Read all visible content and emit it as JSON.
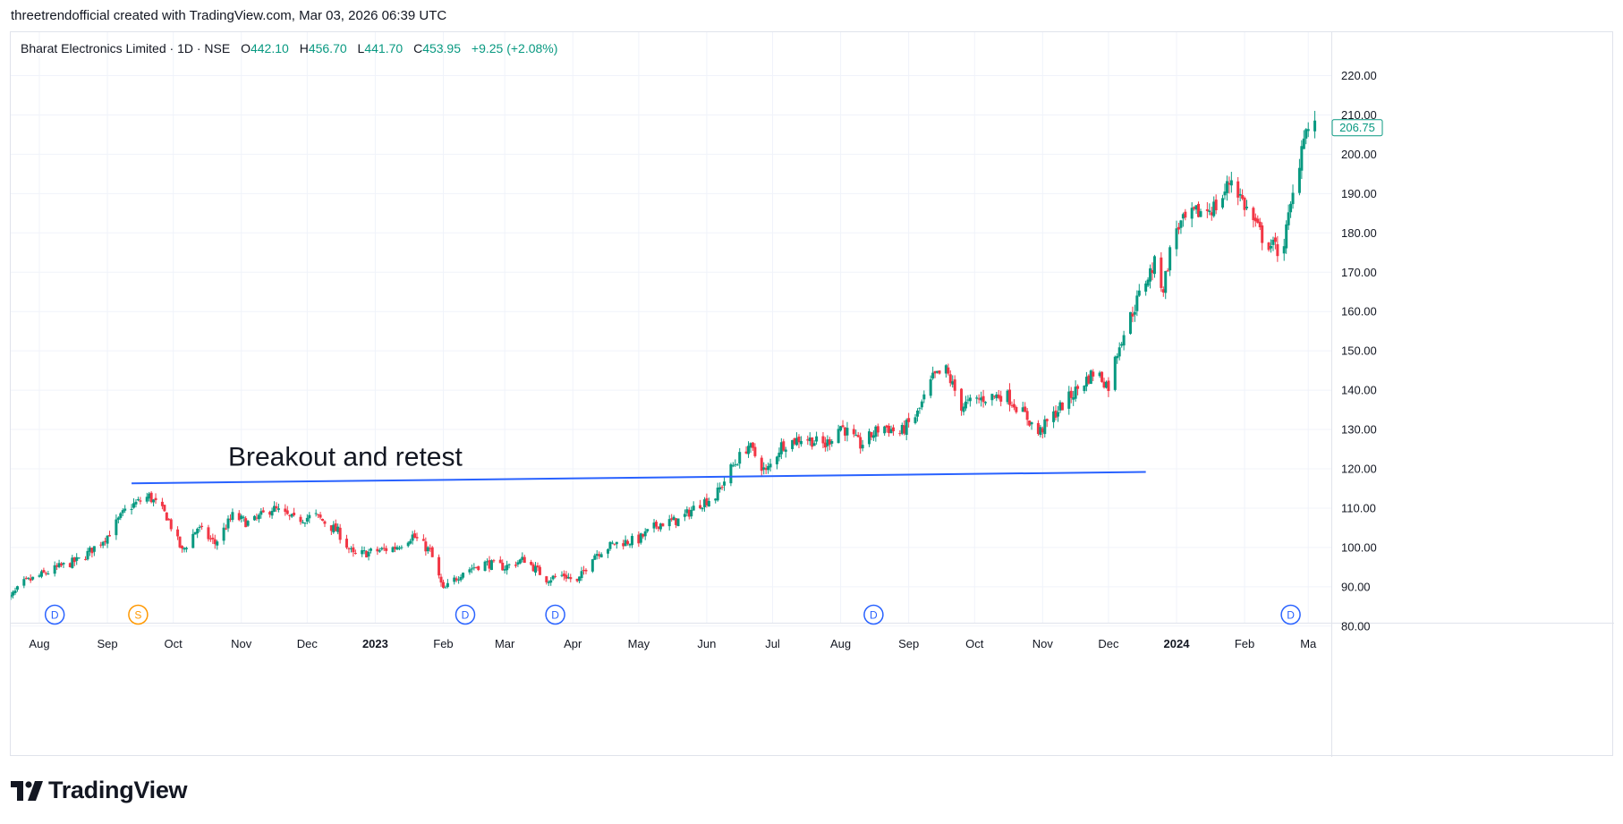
{
  "header": {
    "attribution": "threetrendofficial created with TradingView.com, Mar 03, 2026 06:39 UTC"
  },
  "legend": {
    "symbol": "Bharat Electronics Limited · 1D · NSE",
    "open_label": "O",
    "open": "442.10",
    "high_label": "H",
    "high": "456.70",
    "low_label": "L",
    "low": "441.70",
    "close_label": "C",
    "close": "453.95",
    "change": "+9.25 (+2.08%)"
  },
  "logo": {
    "text": "TradingView",
    "icon": "tradingview-logo-icon"
  },
  "colors": {
    "up": "#089981",
    "down": "#f23645",
    "trendline": "#2962ff",
    "grid": "#f0f3fa",
    "axis_text": "#131722",
    "event_dividend": "#2962ff",
    "event_split": "#ff9800"
  },
  "chart_data": {
    "type": "candlestick",
    "y_axis": {
      "min": 75,
      "max": 225,
      "ticks": [
        80,
        90,
        100,
        110,
        120,
        130,
        140,
        150,
        160,
        170,
        180,
        190,
        200,
        210,
        220
      ],
      "tick_labels": [
        "80.00",
        "90.00",
        "100.00",
        "110.00",
        "120.00",
        "130.00",
        "140.00",
        "150.00",
        "160.00",
        "170.00",
        "180.00",
        "190.00",
        "200.00",
        "210.00",
        "220.00"
      ],
      "position": "right"
    },
    "x_axis": {
      "ticks": [
        {
          "date": "2022-08-01",
          "label": "Aug",
          "bold": false
        },
        {
          "date": "2022-09-01",
          "label": "Sep",
          "bold": false
        },
        {
          "date": "2022-10-01",
          "label": "Oct",
          "bold": false
        },
        {
          "date": "2022-11-01",
          "label": "Nov",
          "bold": false
        },
        {
          "date": "2022-12-01",
          "label": "Dec",
          "bold": false
        },
        {
          "date": "2023-01-01",
          "label": "2023",
          "bold": true
        },
        {
          "date": "2023-02-01",
          "label": "Feb",
          "bold": false
        },
        {
          "date": "2023-03-01",
          "label": "Mar",
          "bold": false
        },
        {
          "date": "2023-04-01",
          "label": "Apr",
          "bold": false
        },
        {
          "date": "2023-05-01",
          "label": "May",
          "bold": false
        },
        {
          "date": "2023-06-01",
          "label": "Jun",
          "bold": false
        },
        {
          "date": "2023-07-01",
          "label": "Jul",
          "bold": false
        },
        {
          "date": "2023-08-01",
          "label": "Aug",
          "bold": false
        },
        {
          "date": "2023-09-01",
          "label": "Sep",
          "bold": false
        },
        {
          "date": "2023-10-01",
          "label": "Oct",
          "bold": false
        },
        {
          "date": "2023-11-01",
          "label": "Nov",
          "bold": false
        },
        {
          "date": "2023-12-01",
          "label": "Dec",
          "bold": false
        },
        {
          "date": "2024-01-01",
          "label": "2024",
          "bold": true
        },
        {
          "date": "2024-02-01",
          "label": "Feb",
          "bold": false
        },
        {
          "date": "2024-03-01",
          "label": "Ma",
          "bold": false
        }
      ]
    },
    "price_path": [
      [
        "2022-07-15",
        85
      ],
      [
        "2022-07-25",
        91
      ],
      [
        "2022-08-10",
        95
      ],
      [
        "2022-08-20",
        97
      ],
      [
        "2022-09-01",
        103
      ],
      [
        "2022-09-10",
        110
      ],
      [
        "2022-09-20",
        113
      ],
      [
        "2022-09-28",
        108
      ],
      [
        "2022-10-05",
        99
      ],
      [
        "2022-10-12",
        105
      ],
      [
        "2022-10-20",
        101
      ],
      [
        "2022-10-28",
        108
      ],
      [
        "2022-11-05",
        106
      ],
      [
        "2022-11-15",
        110
      ],
      [
        "2022-11-25",
        107
      ],
      [
        "2022-12-05",
        108
      ],
      [
        "2022-12-15",
        104
      ],
      [
        "2022-12-22",
        98
      ],
      [
        "2023-01-01",
        99
      ],
      [
        "2023-01-10",
        100
      ],
      [
        "2023-01-18",
        103
      ],
      [
        "2023-01-26",
        99
      ],
      [
        "2023-02-01",
        89
      ],
      [
        "2023-02-10",
        94
      ],
      [
        "2023-02-20",
        96
      ],
      [
        "2023-03-01",
        95
      ],
      [
        "2023-03-10",
        97
      ],
      [
        "2023-03-20",
        92
      ],
      [
        "2023-03-28",
        93
      ],
      [
        "2023-04-03",
        91
      ],
      [
        "2023-04-10",
        98
      ],
      [
        "2023-04-20",
        101
      ],
      [
        "2023-05-01",
        102
      ],
      [
        "2023-05-10",
        106
      ],
      [
        "2023-05-20",
        107
      ],
      [
        "2023-05-28",
        111
      ],
      [
        "2023-06-05",
        113
      ],
      [
        "2023-06-12",
        120
      ],
      [
        "2023-06-20",
        126
      ],
      [
        "2023-06-28",
        119
      ],
      [
        "2023-07-05",
        126
      ],
      [
        "2023-07-15",
        128
      ],
      [
        "2023-07-25",
        126
      ],
      [
        "2023-08-01",
        131
      ],
      [
        "2023-08-10",
        126
      ],
      [
        "2023-08-20",
        131
      ],
      [
        "2023-08-28",
        129
      ],
      [
        "2023-09-05",
        134
      ],
      [
        "2023-09-12",
        143
      ],
      [
        "2023-09-18",
        145
      ],
      [
        "2023-09-25",
        136
      ],
      [
        "2023-10-05",
        138
      ],
      [
        "2023-10-15",
        139
      ],
      [
        "2023-10-25",
        133
      ],
      [
        "2023-10-30",
        129
      ],
      [
        "2023-11-08",
        135
      ],
      [
        "2023-11-18",
        141
      ],
      [
        "2023-11-25",
        145
      ],
      [
        "2023-12-01",
        141
      ],
      [
        "2023-12-06",
        152
      ],
      [
        "2023-12-12",
        160
      ],
      [
        "2023-12-18",
        168
      ],
      [
        "2023-12-22",
        172
      ],
      [
        "2023-12-26",
        166
      ],
      [
        "2023-12-31",
        181
      ],
      [
        "2024-01-10",
        185
      ],
      [
        "2024-01-20",
        187
      ],
      [
        "2024-01-26",
        194
      ],
      [
        "2024-02-01",
        187
      ],
      [
        "2024-02-10",
        178
      ],
      [
        "2024-02-18",
        175
      ],
      [
        "2024-02-25",
        195
      ],
      [
        "2024-02-28",
        206
      ],
      [
        "2024-03-04",
        206.75
      ]
    ],
    "last_price": "206.75",
    "annotations": [
      {
        "type": "trendline",
        "start": [
          "2022-09-12",
          116.3
        ],
        "end": [
          "2023-12-18",
          119.2
        ]
      },
      {
        "type": "text",
        "text": "Breakout and retest",
        "anchor": [
          "2022-10-26",
          120.8
        ]
      }
    ],
    "events": [
      {
        "type": "dividend",
        "label": "D",
        "date": "2022-08-08"
      },
      {
        "type": "split",
        "label": "S",
        "date": "2022-09-15"
      },
      {
        "type": "dividend",
        "label": "D",
        "date": "2023-02-11"
      },
      {
        "type": "dividend",
        "label": "D",
        "date": "2023-03-24"
      },
      {
        "type": "dividend",
        "label": "D",
        "date": "2023-08-16"
      },
      {
        "type": "dividend",
        "label": "D",
        "date": "2024-02-22"
      }
    ],
    "grid": true
  }
}
